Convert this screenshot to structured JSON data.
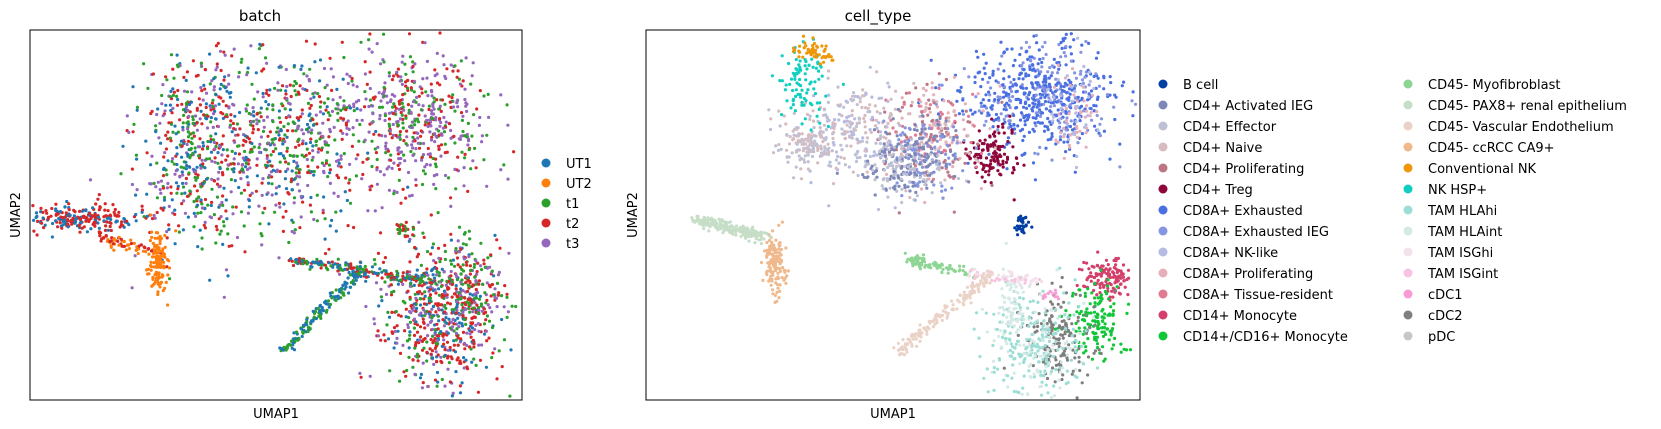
{
  "chart_data": [
    {
      "type": "scatter",
      "title": "batch",
      "xlabel": "UMAP1",
      "ylabel": "UMAP2",
      "grid": false,
      "legend": {
        "placement": "right",
        "columns": 1,
        "entries": [
          {
            "label": "UT1",
            "color": "#1f77b4"
          },
          {
            "label": "UT2",
            "color": "#ff7f0e"
          },
          {
            "label": "t1",
            "color": "#2ca02c"
          },
          {
            "label": "t2",
            "color": "#d62728"
          },
          {
            "label": "t3",
            "color": "#9467bd"
          }
        ]
      },
      "clusters": [
        {
          "cx": 0.34,
          "cy": 0.68,
          "sx": 0.06,
          "sy": 0.14,
          "n": 520,
          "colors": [
            "#2ca02c",
            "#9467bd",
            "#d62728",
            "#1f77b4"
          ]
        },
        {
          "cx": 0.52,
          "cy": 0.7,
          "sx": 0.08,
          "sy": 0.12,
          "n": 520,
          "colors": [
            "#9467bd",
            "#2ca02c",
            "#d62728",
            "#1f77b4"
          ]
        },
        {
          "cx": 0.78,
          "cy": 0.75,
          "sx": 0.08,
          "sy": 0.09,
          "n": 520,
          "colors": [
            "#9467bd",
            "#9467bd",
            "#2ca02c",
            "#d62728"
          ]
        },
        {
          "cx": 0.1,
          "cy": 0.49,
          "sx": 0.07,
          "sy": 0.02,
          "n": 240,
          "colors": [
            "#d62728",
            "#d62728",
            "#1f77b4"
          ]
        },
        {
          "cx": 0.26,
          "cy": 0.37,
          "sx": 0.01,
          "sy": 0.04,
          "n": 130,
          "colors": [
            "#ff7f0e"
          ]
        },
        {
          "cx": 0.76,
          "cy": 0.46,
          "sx": 0.008,
          "sy": 0.012,
          "n": 30,
          "colors": [
            "#2ca02c",
            "#d62728"
          ]
        },
        {
          "cx": 0.83,
          "cy": 0.22,
          "sx": 0.06,
          "sy": 0.1,
          "n": 620,
          "colors": [
            "#d62728",
            "#d62728",
            "#2ca02c",
            "#1f77b4",
            "#9467bd"
          ]
        },
        {
          "cx": 0.9,
          "cy": 0.3,
          "sx": 0.03,
          "sy": 0.06,
          "n": 160,
          "colors": [
            "#d62728",
            "#9467bd",
            "#2ca02c"
          ]
        }
      ],
      "arms": [
        {
          "from": [
            0.53,
            0.38
          ],
          "to": [
            0.82,
            0.32
          ],
          "n": 200,
          "colors": [
            "#1f77b4",
            "#2ca02c",
            "#d62728"
          ]
        },
        {
          "from": [
            0.51,
            0.13
          ],
          "to": [
            0.68,
            0.36
          ],
          "n": 150,
          "colors": [
            "#1f77b4",
            "#2ca02c"
          ]
        },
        {
          "from": [
            0.14,
            0.44
          ],
          "to": [
            0.25,
            0.4
          ],
          "n": 60,
          "colors": [
            "#d62728",
            "#ff7f0e"
          ]
        }
      ]
    },
    {
      "type": "scatter",
      "title": "cell_type",
      "xlabel": "UMAP1",
      "ylabel": "UMAP2",
      "grid": false,
      "legend": {
        "placement": "right",
        "columns": 2,
        "entries": [
          {
            "label": "B cell",
            "color": "#023fa5"
          },
          {
            "label": "CD4+ Activated IEG",
            "color": "#7d87b9"
          },
          {
            "label": "CD4+ Effector",
            "color": "#bec1d4"
          },
          {
            "label": "CD4+ Naive",
            "color": "#d6bcc0"
          },
          {
            "label": "CD4+ Proliferating",
            "color": "#bb7784"
          },
          {
            "label": "CD4+ Treg",
            "color": "#8e063b"
          },
          {
            "label": "CD8A+ Exhausted",
            "color": "#4a6fe3"
          },
          {
            "label": "CD8A+ Exhausted IEG",
            "color": "#8595e1"
          },
          {
            "label": "CD8A+ NK-like",
            "color": "#b5bbe3"
          },
          {
            "label": "CD8A+ Proliferating",
            "color": "#e6afb9"
          },
          {
            "label": "CD8A+ Tissue-resident",
            "color": "#e07b91"
          },
          {
            "label": "CD14+ Monocyte",
            "color": "#d33f6a"
          },
          {
            "label": "CD14+/CD16+ Monocyte",
            "color": "#11c638"
          },
          {
            "label": "CD45- Myofibroblast",
            "color": "#8dd593"
          },
          {
            "label": "CD45- PAX8+ renal epithelium",
            "color": "#c6dec7"
          },
          {
            "label": "CD45- Vascular Endothelium",
            "color": "#ead3c6"
          },
          {
            "label": "CD45- ccRCC CA9+",
            "color": "#f0b98d"
          },
          {
            "label": "Conventional NK",
            "color": "#ef9708"
          },
          {
            "label": "NK HSP+",
            "color": "#0fcfc0"
          },
          {
            "label": "TAM HLAhi",
            "color": "#9cded6"
          },
          {
            "label": "TAM HLAint",
            "color": "#d5eae7"
          },
          {
            "label": "TAM ISGhi",
            "color": "#f3e1eb"
          },
          {
            "label": "TAM ISGint",
            "color": "#f6c4e1"
          },
          {
            "label": "cDC1",
            "color": "#f79cd4"
          },
          {
            "label": "cDC2",
            "color": "#7f7f7f"
          },
          {
            "label": "pDC",
            "color": "#c7c7c7"
          }
        ]
      },
      "clusters": [
        {
          "cx": 0.8,
          "cy": 0.82,
          "sx": 0.08,
          "sy": 0.07,
          "n": 600,
          "colors": [
            "#4a6fe3",
            "#4a6fe3",
            "#8595e1"
          ]
        },
        {
          "cx": 0.7,
          "cy": 0.67,
          "sx": 0.03,
          "sy": 0.04,
          "n": 120,
          "colors": [
            "#8e063b"
          ]
        },
        {
          "cx": 0.58,
          "cy": 0.72,
          "sx": 0.05,
          "sy": 0.07,
          "n": 260,
          "colors": [
            "#e07b91",
            "#d6bcc0",
            "#bb7784",
            "#e6afb9"
          ]
        },
        {
          "cx": 0.42,
          "cy": 0.72,
          "sx": 0.05,
          "sy": 0.07,
          "n": 240,
          "colors": [
            "#bec1d4",
            "#b5bbe3",
            "#d6bcc0"
          ]
        },
        {
          "cx": 0.56,
          "cy": 0.66,
          "sx": 0.04,
          "sy": 0.05,
          "n": 160,
          "colors": [
            "#7d87b9",
            "#8595e1"
          ]
        },
        {
          "cx": 0.52,
          "cy": 0.63,
          "sx": 0.04,
          "sy": 0.04,
          "n": 180,
          "colors": [
            "#7d87b9",
            "#bec1d4"
          ]
        },
        {
          "cx": 0.33,
          "cy": 0.69,
          "sx": 0.03,
          "sy": 0.03,
          "n": 130,
          "colors": [
            "#d6bcc0",
            "#bec1d4"
          ]
        },
        {
          "cx": 0.32,
          "cy": 0.86,
          "sx": 0.025,
          "sy": 0.05,
          "n": 90,
          "colors": [
            "#0fcfc0"
          ]
        },
        {
          "cx": 0.34,
          "cy": 0.94,
          "sx": 0.025,
          "sy": 0.015,
          "n": 50,
          "colors": [
            "#ef9708"
          ]
        },
        {
          "cx": 0.87,
          "cy": 0.78,
          "sx": 0.02,
          "sy": 0.06,
          "n": 80,
          "colors": [
            "#e6afb9",
            "#b5bbe3"
          ]
        },
        {
          "cx": 0.76,
          "cy": 0.47,
          "sx": 0.008,
          "sy": 0.015,
          "n": 35,
          "colors": [
            "#023fa5"
          ]
        },
        {
          "cx": 0.26,
          "cy": 0.37,
          "sx": 0.01,
          "sy": 0.04,
          "n": 130,
          "colors": [
            "#f0b98d"
          ]
        },
        {
          "cx": 0.93,
          "cy": 0.33,
          "sx": 0.025,
          "sy": 0.025,
          "n": 120,
          "colors": [
            "#d33f6a"
          ]
        },
        {
          "cx": 0.91,
          "cy": 0.22,
          "sx": 0.03,
          "sy": 0.05,
          "n": 140,
          "colors": [
            "#11c638"
          ]
        },
        {
          "cx": 0.84,
          "cy": 0.18,
          "sx": 0.035,
          "sy": 0.06,
          "n": 160,
          "colors": [
            "#7f7f7f"
          ]
        },
        {
          "cx": 0.79,
          "cy": 0.15,
          "sx": 0.05,
          "sy": 0.08,
          "n": 300,
          "colors": [
            "#9cded6",
            "#d5eae7",
            "#9cded6"
          ]
        },
        {
          "cx": 0.74,
          "cy": 0.26,
          "sx": 0.015,
          "sy": 0.05,
          "n": 60,
          "colors": [
            "#d5eae7"
          ]
        },
        {
          "cx": 0.82,
          "cy": 0.28,
          "sx": 0.01,
          "sy": 0.01,
          "n": 12,
          "colors": [
            "#f79cd4"
          ]
        }
      ],
      "arms": [
        {
          "from": [
            0.1,
            0.49
          ],
          "to": [
            0.24,
            0.44
          ],
          "n": 220,
          "colors": [
            "#c6dec7"
          ]
        },
        {
          "from": [
            0.53,
            0.38
          ],
          "to": [
            0.66,
            0.34
          ],
          "n": 80,
          "colors": [
            "#8dd593"
          ]
        },
        {
          "from": [
            0.66,
            0.34
          ],
          "to": [
            0.8,
            0.32
          ],
          "n": 70,
          "colors": [
            "#f6c4e1",
            "#f3e1eb"
          ]
        },
        {
          "from": [
            0.51,
            0.13
          ],
          "to": [
            0.7,
            0.34
          ],
          "n": 160,
          "colors": [
            "#ead3c6"
          ]
        }
      ]
    }
  ]
}
